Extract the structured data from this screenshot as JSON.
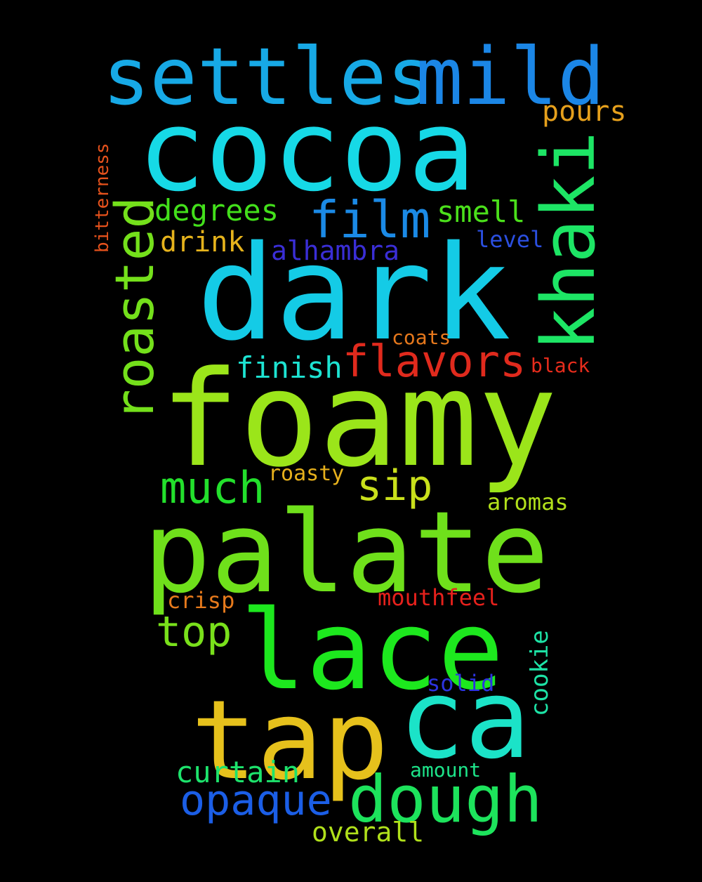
{
  "background": "#000000",
  "words": [
    {
      "text": "foamy",
      "color": "#9be51a"
    },
    {
      "text": "dark",
      "color": "#14cbe6"
    },
    {
      "text": "cocoa",
      "color": "#16d9e6"
    },
    {
      "text": "palate",
      "color": "#6fe01b"
    },
    {
      "text": "lace",
      "color": "#1de81e"
    },
    {
      "text": "tap",
      "color": "#e6c11c"
    },
    {
      "text": "ca",
      "color": "#1be3c8"
    },
    {
      "text": "settles",
      "color": "#17a9e6"
    },
    {
      "text": "mild",
      "color": "#1b86e6"
    },
    {
      "text": "khaki",
      "color": "#1de565"
    },
    {
      "text": "dough",
      "color": "#1de35c"
    },
    {
      "text": "roasted",
      "color": "#74e01b"
    },
    {
      "text": "film",
      "color": "#1b8ae6"
    },
    {
      "text": "flavors",
      "color": "#e02a1d"
    },
    {
      "text": "much",
      "color": "#23e02c"
    },
    {
      "text": "opaque",
      "color": "#1b5ee6"
    },
    {
      "text": "sip",
      "color": "#c9e01b"
    },
    {
      "text": "top",
      "color": "#79e01b"
    },
    {
      "text": "degrees",
      "color": "#43e01b"
    },
    {
      "text": "smell",
      "color": "#4be01b"
    },
    {
      "text": "finish",
      "color": "#1de3d2"
    },
    {
      "text": "curtain",
      "color": "#1de36c"
    },
    {
      "text": "pours",
      "color": "#e6a01c"
    },
    {
      "text": "drink",
      "color": "#e6b31c"
    },
    {
      "text": "alhambra",
      "color": "#3a2ed6"
    },
    {
      "text": "overall",
      "color": "#b0e01b"
    },
    {
      "text": "cookie",
      "color": "#1de3a6"
    },
    {
      "text": "level",
      "color": "#2b4fe0"
    },
    {
      "text": "mouthfeel",
      "color": "#e6211c"
    },
    {
      "text": "aromas",
      "color": "#b2e01b"
    },
    {
      "text": "crisp",
      "color": "#e67a1c"
    },
    {
      "text": "solid",
      "color": "#2c33e0"
    },
    {
      "text": "bitterness",
      "color": "#e6521c"
    },
    {
      "text": "roasty",
      "color": "#e6b01c"
    },
    {
      "text": "coats",
      "color": "#e6781c"
    },
    {
      "text": "black",
      "color": "#e62c1c"
    },
    {
      "text": "amount",
      "color": "#1de389"
    }
  ]
}
